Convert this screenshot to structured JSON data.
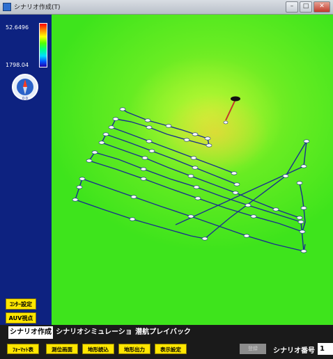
{
  "window": {
    "title": "シナリオ作成(T)"
  },
  "left_panel": {
    "scale_max": "52.6496",
    "scale_min": "1798.04",
    "compass_label": "0.0",
    "contour_button": "ｺﾝﾀｰ設定",
    "auv_button": "AUV視点"
  },
  "tabs": [
    "シナリオ作成",
    "シナリオシミュレーション",
    "潜航プレイバック"
  ],
  "active_tab": 0,
  "toolbar": {
    "buttons": [
      "ﾌｫｰﾏｯﾄ表",
      "測位画面",
      "地形読込",
      "地形出力",
      "表示設定"
    ],
    "disabled_button": "登録",
    "scenario_label": "シナリオ番号",
    "scenario_number": "1"
  },
  "colors": {
    "panel_blue": "#0d2280",
    "button_yellow": "#ffe600",
    "terrain_green": "#35e21a",
    "route_line": "#1a2f8f",
    "auv_marker": "#c0392b"
  }
}
